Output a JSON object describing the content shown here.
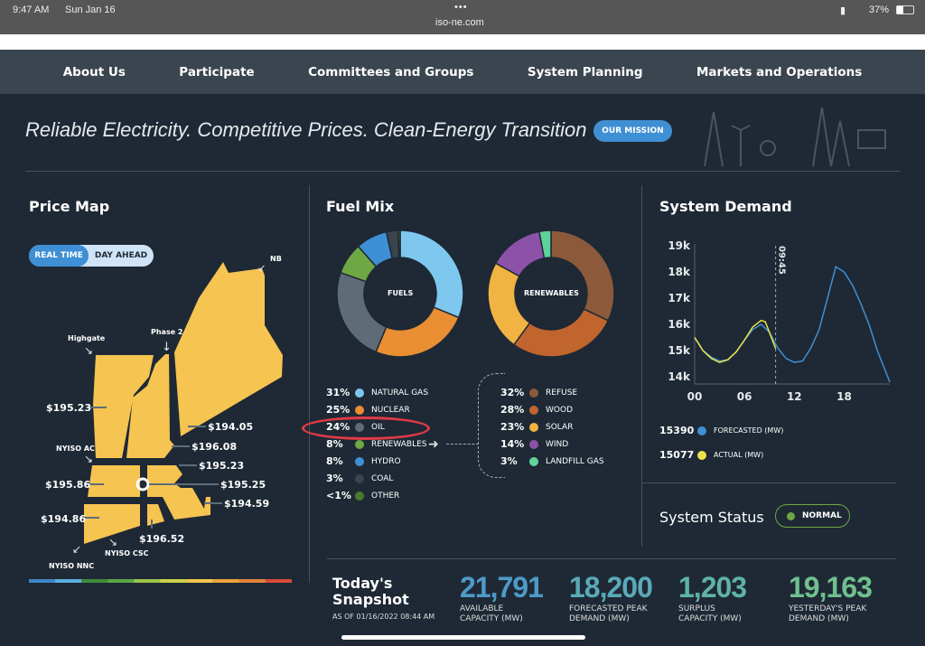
{
  "status_bar": {
    "time": "9:47 AM",
    "date": "Sun Jan 16",
    "url": "iso-ne.com",
    "battery": "37%"
  },
  "nav": [
    "About Us",
    "Participate",
    "Committees and Groups",
    "System Planning",
    "Markets and Operations"
  ],
  "hero": {
    "tagline": "Reliable Electricity. Competitive Prices. Clean-Energy Transition.",
    "mission_button": "OUR MISSION"
  },
  "price_map": {
    "title": "Price Map",
    "toggle": [
      "REAL TIME",
      "DAY AHEAD"
    ],
    "active": "REAL TIME",
    "interfaces": [
      "NB",
      "Phase 2",
      "Highgate",
      "NYISO AC",
      "NYISO CSC",
      "NYISO NNC"
    ],
    "prices": [
      "$195.23",
      "$194.05",
      "$196.08",
      "$195.23",
      "$195.86",
      "$195.25",
      "$194.59",
      "$194.86",
      "$196.52"
    ],
    "scale_colors": [
      "#3f86c6",
      "#5aaee0",
      "#3f8a3c",
      "#5aa545",
      "#9cc64b",
      "#c9d24a",
      "#f2c54a",
      "#eea13a",
      "#e0823a",
      "#d94b3a"
    ]
  },
  "fuel_mix": {
    "title": "Fuel Mix",
    "fuels_label": "FUELS",
    "renewables_label": "RENEWABLES",
    "fuels": [
      {
        "pct": "31%",
        "name": "NATURAL GAS",
        "value": 31,
        "color": "#7ec8f0"
      },
      {
        "pct": "25%",
        "name": "NUCLEAR",
        "value": 25,
        "color": "#ea8e34"
      },
      {
        "pct": "24%",
        "name": "OIL",
        "value": 24,
        "color": "#5f6b76"
      },
      {
        "pct": "8%",
        "name": "RENEWABLES",
        "value": 8,
        "color": "#6ea844"
      },
      {
        "pct": "8%",
        "name": "HYDRO",
        "value": 8,
        "color": "#3f8fd4"
      },
      {
        "pct": "3%",
        "name": "COAL",
        "value": 3,
        "color": "#3b434b"
      },
      {
        "pct": "<1%",
        "name": "OTHER",
        "value": 0.5,
        "color": "#4c7a2c"
      }
    ],
    "renewables": [
      {
        "pct": "32%",
        "name": "REFUSE",
        "value": 32,
        "color": "#8c5a3a"
      },
      {
        "pct": "28%",
        "name": "WOOD",
        "value": 28,
        "color": "#c0652d"
      },
      {
        "pct": "23%",
        "name": "SOLAR",
        "value": 23,
        "color": "#f1b442"
      },
      {
        "pct": "14%",
        "name": "WIND",
        "value": 14,
        "color": "#8b52a8"
      },
      {
        "pct": "3%",
        "name": "LANDFILL GAS",
        "value": 3,
        "color": "#5fd39a"
      }
    ]
  },
  "system_demand": {
    "title": "System Demand",
    "now_label": "09:45",
    "chart_data": {
      "type": "line",
      "x_ticks": [
        "00",
        "06",
        "12",
        "18"
      ],
      "y_ticks": [
        "14k",
        "15k",
        "16k",
        "17k",
        "18k",
        "19k"
      ],
      "ylim": [
        14000,
        19000
      ],
      "xlim": [
        0,
        23.5
      ],
      "now_hour": 9.75,
      "series": [
        {
          "name": "FORECASTED (MW)",
          "color": "#3f8fd4",
          "x": [
            0,
            1,
            2,
            3,
            4,
            5,
            6,
            7,
            8,
            9,
            10,
            11,
            12,
            13,
            14,
            15,
            16,
            17,
            18,
            19,
            20,
            21,
            22,
            23.5
          ],
          "y": [
            15500,
            15000,
            14750,
            14600,
            14650,
            14950,
            15400,
            15800,
            16000,
            15700,
            15100,
            14700,
            14550,
            14600,
            15100,
            15800,
            17000,
            18200,
            18000,
            17500,
            16800,
            16000,
            15000,
            13800
          ]
        },
        {
          "name": "ACTUAL (MW)",
          "color": "#e8e34a",
          "x": [
            0,
            1,
            2,
            3,
            4,
            5,
            6,
            7,
            8,
            8.5,
            9,
            9.75
          ],
          "y": [
            15500,
            15000,
            14700,
            14550,
            14650,
            14950,
            15400,
            15900,
            16150,
            16100,
            15700,
            15077
          ]
        }
      ]
    },
    "legend": [
      {
        "value": "15390",
        "label": "FORECASTED (MW)",
        "color": "#3f8fd4"
      },
      {
        "value": "15077",
        "label": "ACTUAL (MW)",
        "color": "#e8e34a"
      }
    ]
  },
  "system_status": {
    "title": "System Status",
    "value": "NORMAL",
    "color": "#6ea844"
  },
  "snapshot": {
    "title1": "Today's",
    "title2": "Snapshot",
    "as_of": "AS OF 01/16/2022 08:44 AM",
    "stats": [
      {
        "value": "21,791",
        "l1": "AVAILABLE",
        "l2": "CAPACITY (MW)",
        "color": "#4f9ac8"
      },
      {
        "value": "18,200",
        "l1": "FORECASTED PEAK",
        "l2": "DEMAND (MW)",
        "color": "#5aaab8"
      },
      {
        "value": "1,203",
        "l1": "SURPLUS",
        "l2": "CAPACITY (MW)",
        "color": "#5fb3a3"
      },
      {
        "value": "19,163",
        "l1": "YESTERDAY'S PEAK",
        "l2": "DEMAND (MW)",
        "color": "#6fc08e"
      }
    ]
  }
}
